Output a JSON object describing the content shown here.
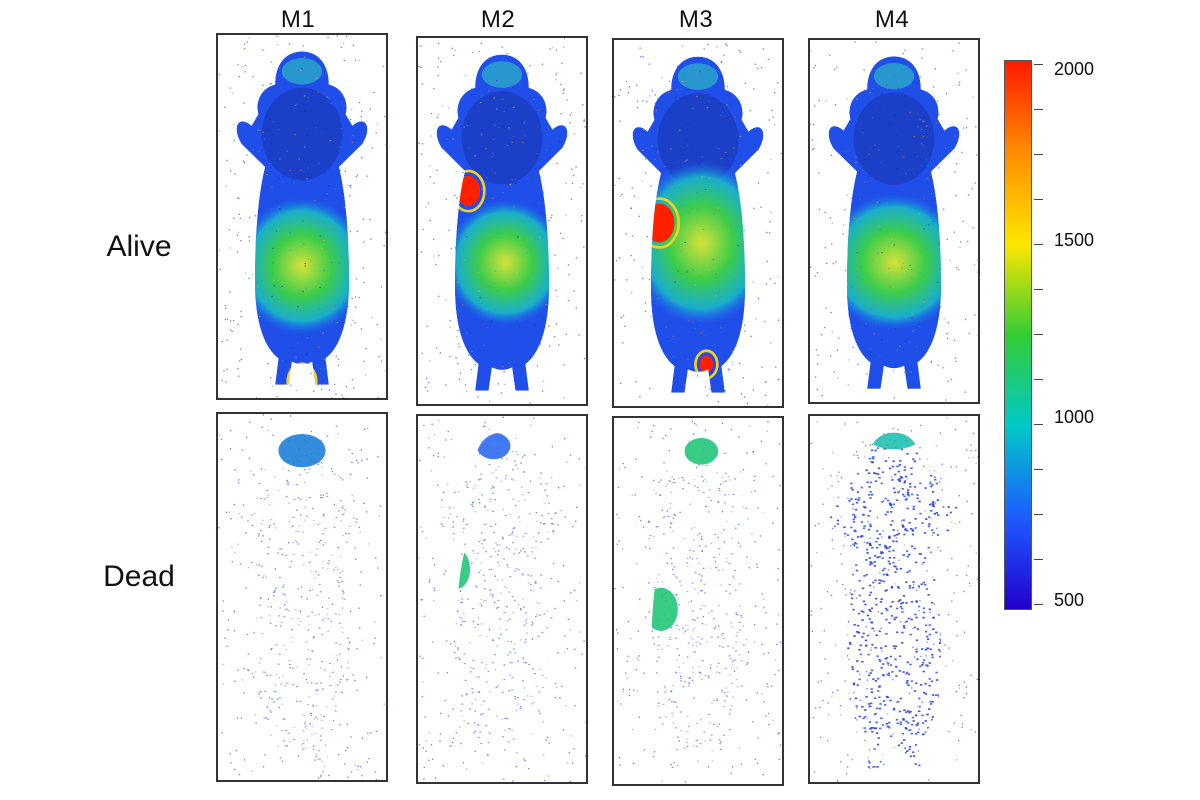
{
  "columns": [
    "M1",
    "M2",
    "M3",
    "M4"
  ],
  "rows": [
    "Alive",
    "Dead"
  ],
  "colorbar": {
    "min": 500,
    "max": 2000,
    "labels": [
      "2000",
      "1500",
      "1000",
      "500"
    ],
    "stops": [
      "#ff1a00",
      "#ff8c00",
      "#ffe600",
      "#33cc33",
      "#00c8c8",
      "#1e5cff",
      "#2200cc"
    ]
  }
}
